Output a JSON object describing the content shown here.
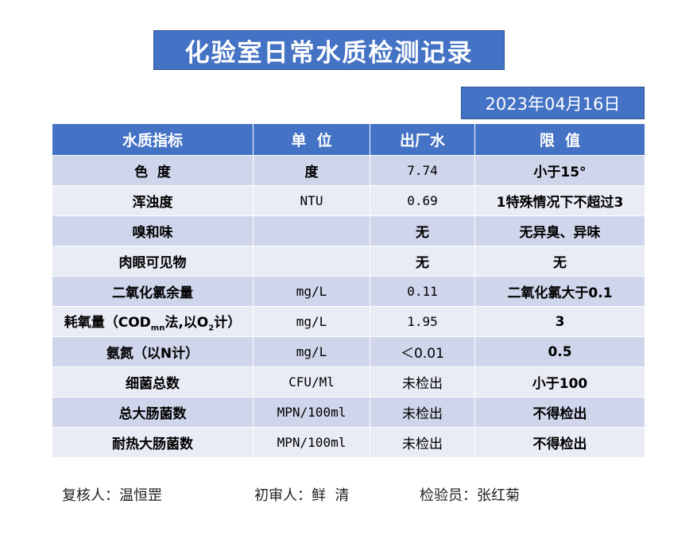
{
  "title": "化验室日常水质检测记录",
  "date": "2023年04月16日",
  "table": {
    "headers": [
      "水质指标",
      "单  位",
      "出厂水",
      "限  值"
    ],
    "rows": [
      {
        "indicator": "色  度",
        "unit": "度",
        "value": "7.74",
        "limit": "小于15°"
      },
      {
        "indicator": "浑浊度",
        "unit": "NTU",
        "value": "0.69",
        "limit": "1特殊情况下不超过3"
      },
      {
        "indicator": "嗅和味",
        "unit": "",
        "value": "无",
        "limit": "无异臭、异味"
      },
      {
        "indicator": "肉眼可见物",
        "unit": "",
        "value": "无",
        "limit": "无"
      },
      {
        "indicator": "二氧化氯余量",
        "unit": "mg/L",
        "value": "0.11",
        "limit": "二氧化氯大于0.1"
      },
      {
        "indicator": "耗氧量（COD",
        "indicator_sub1": "mn",
        "indicator_mid": "法,以O",
        "indicator_sub2": "2",
        "indicator_end": "计）",
        "unit": "mg/L",
        "value": "1.95",
        "limit": "3"
      },
      {
        "indicator": "氨氮（以N计）",
        "unit": "mg/L",
        "value": "＜0.01",
        "limit": "0.5"
      },
      {
        "indicator": "细菌总数",
        "unit": "CFU/Ml",
        "value": "未检出",
        "limit": "小于100"
      },
      {
        "indicator": "总大肠菌数",
        "unit": "MPN/100ml",
        "value": "未检出",
        "limit": "不得检出"
      },
      {
        "indicator": "耐热大肠菌数",
        "unit": "MPN/100ml",
        "value": "未检出",
        "limit": "不得检出"
      }
    ]
  },
  "footer": {
    "reviewer": "复核人：温恒罡",
    "first_reviewer": "初审人：鲜  清",
    "inspector": "检验员：张红菊"
  },
  "colors": {
    "header_blue": "#4472c4",
    "row_dark": "#cfd5ea",
    "row_light": "#e9ebf5"
  }
}
